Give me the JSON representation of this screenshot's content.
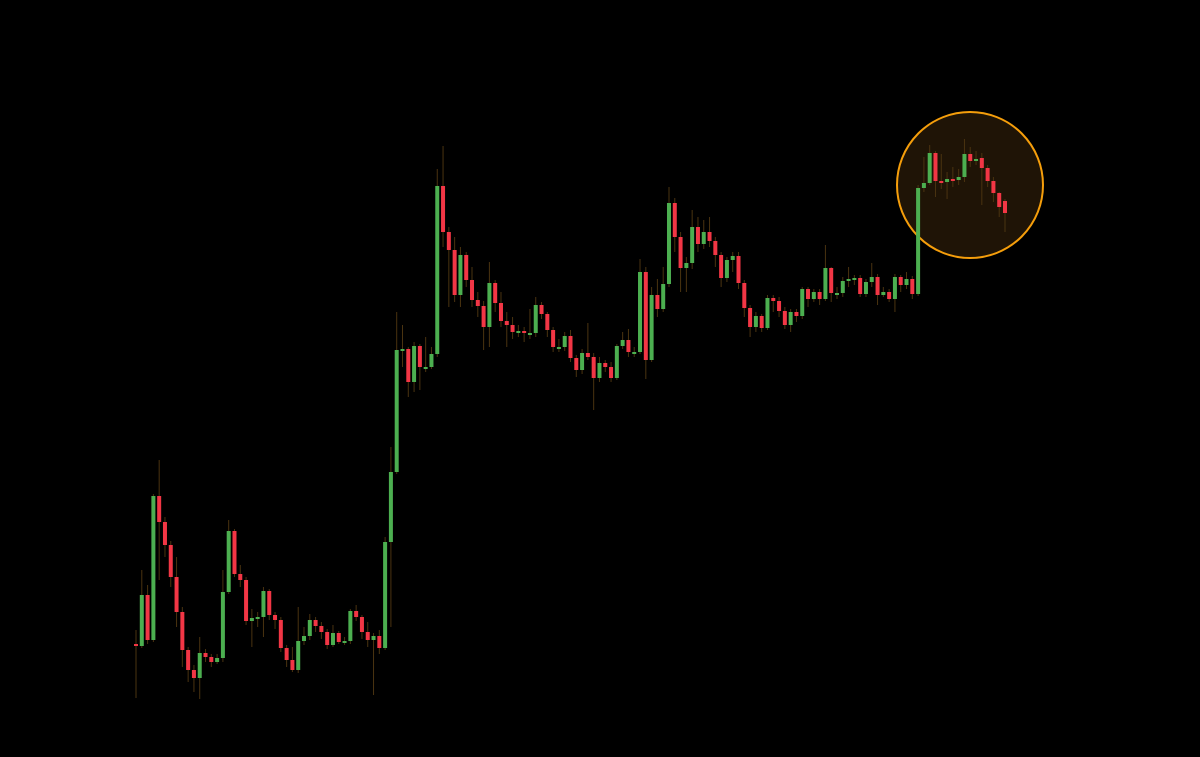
{
  "chart_data": {
    "type": "candlestick",
    "title": "",
    "xlabel": "",
    "ylabel": "",
    "ylim": [
      0,
      757
    ],
    "grid": false,
    "axes_visible": false,
    "colors": {
      "background": "#000000",
      "up": "#4caf50",
      "down": "#f23645",
      "wick": "#4a3310",
      "highlight_stroke": "#f59e0b",
      "highlight_fill": "#1f1406"
    },
    "highlight": {
      "shape": "circle",
      "first_candle": 137,
      "last_candle": 151
    },
    "candles_ohlc": [
      [
        113,
        127,
        59,
        111
      ],
      [
        111,
        187,
        109,
        162
      ],
      [
        162,
        172,
        113,
        117
      ],
      [
        117,
        263,
        115,
        261
      ],
      [
        261,
        297,
        177,
        235
      ],
      [
        235,
        240,
        200,
        212
      ],
      [
        212,
        216,
        170,
        180
      ],
      [
        180,
        200,
        130,
        145
      ],
      [
        145,
        150,
        90,
        107
      ],
      [
        107,
        110,
        75,
        87
      ],
      [
        87,
        92,
        65,
        79
      ],
      [
        79,
        120,
        58,
        104
      ],
      [
        104,
        108,
        95,
        100
      ],
      [
        100,
        103,
        90,
        95
      ],
      [
        95,
        103,
        93,
        99
      ],
      [
        99,
        187,
        95,
        165
      ],
      [
        165,
        237,
        163,
        226
      ],
      [
        226,
        228,
        180,
        183
      ],
      [
        183,
        192,
        170,
        177
      ],
      [
        177,
        180,
        132,
        136
      ],
      [
        136,
        148,
        110,
        139
      ],
      [
        139,
        145,
        130,
        140
      ],
      [
        140,
        170,
        120,
        166
      ],
      [
        166,
        168,
        137,
        142
      ],
      [
        142,
        145,
        128,
        137
      ],
      [
        137,
        140,
        105,
        109
      ],
      [
        109,
        112,
        90,
        97
      ],
      [
        97,
        110,
        85,
        87
      ],
      [
        87,
        150,
        84,
        116
      ],
      [
        116,
        130,
        112,
        121
      ],
      [
        121,
        143,
        117,
        137
      ],
      [
        137,
        140,
        125,
        131
      ],
      [
        131,
        135,
        118,
        125
      ],
      [
        125,
        128,
        108,
        112
      ],
      [
        112,
        132,
        110,
        124
      ],
      [
        124,
        126,
        113,
        115
      ],
      [
        115,
        120,
        112,
        116
      ],
      [
        116,
        148,
        113,
        146
      ],
      [
        146,
        152,
        136,
        140
      ],
      [
        140,
        142,
        118,
        125
      ],
      [
        125,
        135,
        110,
        117
      ],
      [
        117,
        124,
        62,
        121
      ],
      [
        121,
        127,
        103,
        109
      ],
      [
        109,
        220,
        107,
        215
      ],
      [
        215,
        310,
        130,
        285
      ],
      [
        285,
        445,
        283,
        407
      ],
      [
        407,
        432,
        390,
        408
      ],
      [
        408,
        410,
        360,
        375
      ],
      [
        375,
        415,
        365,
        411
      ],
      [
        411,
        413,
        367,
        390
      ],
      [
        390,
        420,
        385,
        390
      ],
      [
        390,
        410,
        388,
        403
      ],
      [
        403,
        588,
        400,
        571
      ],
      [
        571,
        611,
        510,
        525
      ],
      [
        525,
        530,
        450,
        507
      ],
      [
        507,
        520,
        455,
        462
      ],
      [
        462,
        510,
        450,
        502
      ],
      [
        502,
        505,
        470,
        477
      ],
      [
        477,
        490,
        450,
        457
      ],
      [
        457,
        465,
        440,
        451
      ],
      [
        451,
        456,
        407,
        430
      ],
      [
        430,
        495,
        410,
        474
      ],
      [
        474,
        477,
        445,
        454
      ],
      [
        454,
        465,
        430,
        436
      ],
      [
        436,
        445,
        410,
        432
      ],
      [
        432,
        440,
        418,
        425
      ],
      [
        425,
        432,
        420,
        426
      ],
      [
        426,
        430,
        415,
        424
      ],
      [
        424,
        448,
        418,
        424
      ],
      [
        424,
        460,
        420,
        452
      ],
      [
        452,
        455,
        438,
        443
      ],
      [
        443,
        445,
        420,
        427
      ],
      [
        427,
        430,
        405,
        410
      ],
      [
        410,
        418,
        405,
        410
      ],
      [
        410,
        425,
        406,
        421
      ],
      [
        421,
        427,
        395,
        399
      ],
      [
        399,
        402,
        380,
        387
      ],
      [
        387,
        408,
        383,
        404
      ],
      [
        404,
        434,
        397,
        400
      ],
      [
        400,
        404,
        347,
        379
      ],
      [
        379,
        400,
        375,
        394
      ],
      [
        394,
        397,
        385,
        390
      ],
      [
        390,
        395,
        375,
        379
      ],
      [
        379,
        413,
        377,
        411
      ],
      [
        411,
        425,
        408,
        417
      ],
      [
        417,
        428,
        400,
        405
      ],
      [
        405,
        410,
        400,
        405
      ],
      [
        405,
        498,
        403,
        485
      ],
      [
        485,
        490,
        378,
        397
      ],
      [
        397,
        470,
        395,
        462
      ],
      [
        462,
        478,
        440,
        448
      ],
      [
        448,
        490,
        445,
        473
      ],
      [
        473,
        570,
        470,
        554
      ],
      [
        554,
        559,
        505,
        520
      ],
      [
        520,
        525,
        465,
        489
      ],
      [
        489,
        500,
        465,
        494
      ],
      [
        494,
        547,
        488,
        530
      ],
      [
        530,
        540,
        505,
        513
      ],
      [
        513,
        537,
        508,
        525
      ],
      [
        525,
        540,
        510,
        516
      ],
      [
        516,
        520,
        490,
        502
      ],
      [
        502,
        505,
        470,
        479
      ],
      [
        479,
        500,
        475,
        497
      ],
      [
        497,
        505,
        485,
        501
      ],
      [
        501,
        505,
        468,
        474
      ],
      [
        474,
        477,
        440,
        449
      ],
      [
        449,
        452,
        420,
        430
      ],
      [
        430,
        445,
        425,
        441
      ],
      [
        441,
        443,
        425,
        429
      ],
      [
        429,
        462,
        427,
        459
      ],
      [
        459,
        462,
        445,
        456
      ],
      [
        456,
        460,
        440,
        446
      ],
      [
        446,
        450,
        428,
        432
      ],
      [
        432,
        448,
        425,
        445
      ],
      [
        445,
        448,
        435,
        441
      ],
      [
        441,
        470,
        438,
        468
      ],
      [
        468,
        470,
        450,
        458
      ],
      [
        458,
        468,
        455,
        465
      ],
      [
        465,
        468,
        452,
        458
      ],
      [
        458,
        512,
        456,
        489
      ],
      [
        489,
        490,
        455,
        464
      ],
      [
        464,
        470,
        458,
        464
      ],
      [
        464,
        480,
        460,
        476
      ],
      [
        476,
        490,
        470,
        478
      ],
      [
        478,
        482,
        472,
        479
      ],
      [
        479,
        482,
        460,
        463
      ],
      [
        463,
        478,
        460,
        475
      ],
      [
        475,
        494,
        470,
        480
      ],
      [
        480,
        483,
        452,
        462
      ],
      [
        462,
        470,
        460,
        465
      ],
      [
        465,
        468,
        455,
        458
      ],
      [
        458,
        483,
        445,
        480
      ],
      [
        480,
        482,
        465,
        472
      ],
      [
        472,
        485,
        468,
        478
      ],
      [
        478,
        481,
        458,
        463
      ],
      [
        463,
        572,
        461,
        569
      ],
      [
        569,
        600,
        565,
        574
      ],
      [
        574,
        612,
        572,
        604
      ],
      [
        604,
        606,
        560,
        576
      ],
      [
        576,
        603,
        568,
        575
      ],
      [
        575,
        585,
        558,
        578
      ],
      [
        578,
        590,
        570,
        577
      ],
      [
        577,
        588,
        572,
        580
      ],
      [
        580,
        618,
        575,
        603
      ],
      [
        603,
        610,
        590,
        596
      ],
      [
        596,
        606,
        592,
        598
      ],
      [
        599,
        604,
        552,
        589
      ],
      [
        589,
        592,
        570,
        576
      ],
      [
        576,
        580,
        555,
        564
      ],
      [
        564,
        565,
        540,
        550
      ],
      [
        556,
        558,
        525,
        544
      ]
    ]
  }
}
